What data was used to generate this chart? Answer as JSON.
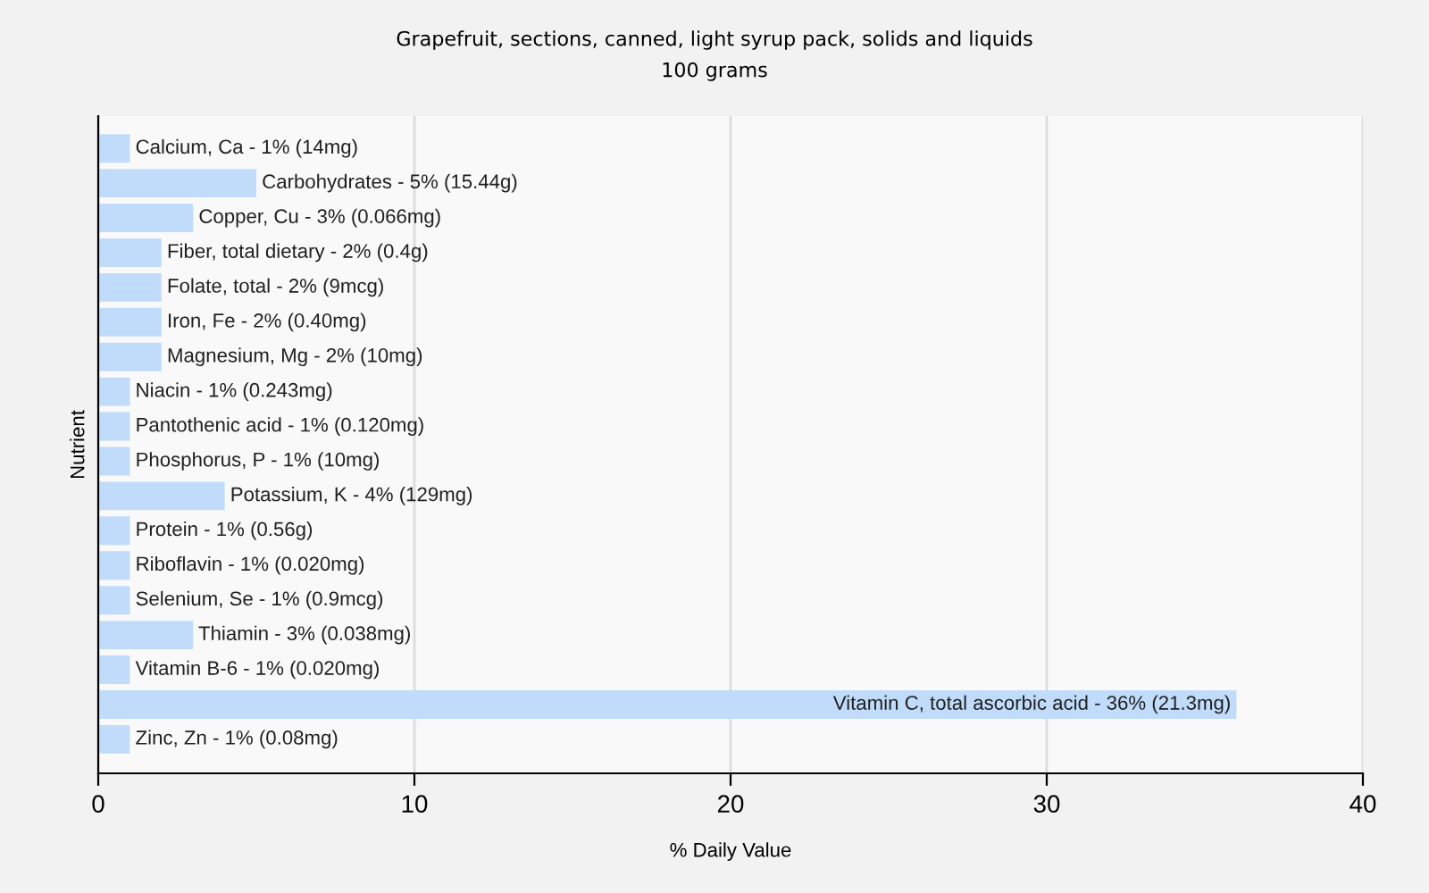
{
  "chart_data": {
    "type": "bar",
    "orientation": "horizontal",
    "title": "Grapefruit, sections, canned, light syrup pack, solids and liquids",
    "subtitle": "100 grams",
    "xlabel": "% Daily Value",
    "ylabel": "Nutrient",
    "categories": [
      "Calcium, Ca - 1% (14mg)",
      "Carbohydrates - 5% (15.44g)",
      "Copper, Cu - 3% (0.066mg)",
      "Fiber, total dietary - 2% (0.4g)",
      "Folate, total - 2% (9mcg)",
      "Iron, Fe - 2% (0.40mg)",
      "Magnesium, Mg - 2% (10mg)",
      "Niacin - 1% (0.243mg)",
      "Pantothenic acid - 1% (0.120mg)",
      "Phosphorus, P - 1% (10mg)",
      "Potassium, K - 4% (129mg)",
      "Protein - 1% (0.56g)",
      "Riboflavin - 1% (0.020mg)",
      "Selenium, Se - 1% (0.9mcg)",
      "Thiamin - 3% (0.038mg)",
      "Vitamin B-6 - 1% (0.020mg)",
      "Vitamin C, total ascorbic acid - 36% (21.3mg)",
      "Zinc, Zn - 1% (0.08mg)"
    ],
    "values": [
      1,
      5,
      3,
      2,
      2,
      2,
      2,
      1,
      1,
      1,
      4,
      1,
      1,
      1,
      3,
      1,
      36,
      1
    ],
    "color": "#c0dcfa",
    "xlim": [
      0,
      40
    ],
    "xticks": [
      0,
      10,
      20,
      30,
      40
    ],
    "grid": "x"
  }
}
